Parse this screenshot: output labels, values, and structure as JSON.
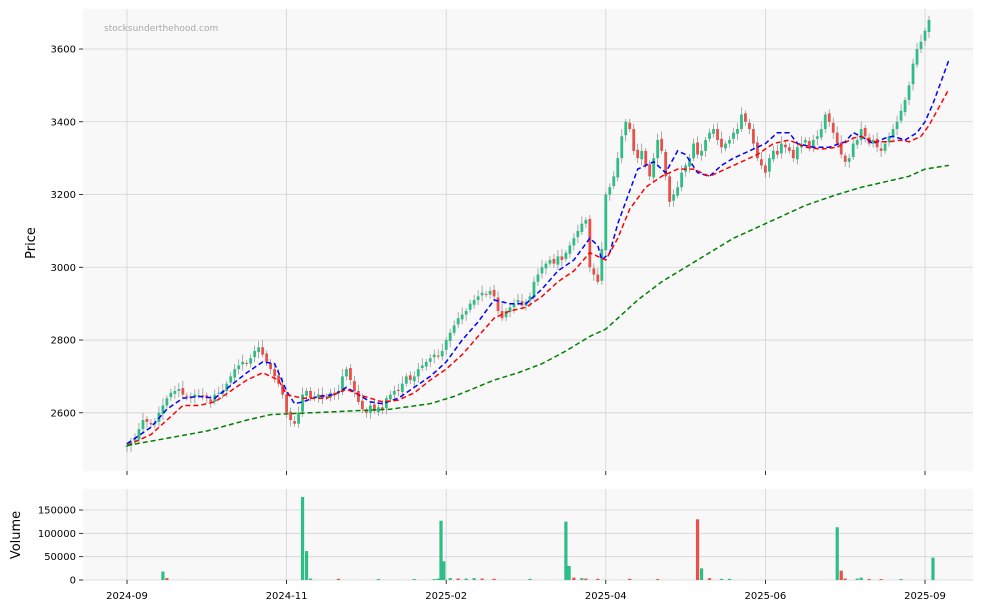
{
  "chart_data": [
    {
      "type": "candlestick",
      "watermark": "stocksunderthehood.com",
      "ylabel": "Price",
      "ylim": [
        2440,
        3710
      ],
      "yticks": [
        2600,
        2800,
        3000,
        3200,
        3400,
        3600
      ],
      "grid": true,
      "x_ticks": [
        {
          "label": "2024-09",
          "index": 0
        },
        {
          "label": "2024-11",
          "index": 40
        },
        {
          "label": "2025-02",
          "index": 80
        },
        {
          "label": "2025-04",
          "index": 120
        },
        {
          "label": "2025-06",
          "index": 160
        },
        {
          "label": "2025-09",
          "index": 200
        }
      ],
      "up_color": "#2ebd85",
      "down_color": "#e8504a",
      "closes": [
        2510,
        2520,
        2530,
        2555,
        2580,
        2575,
        2568,
        2572,
        2600,
        2620,
        2640,
        2655,
        2660,
        2665,
        2650,
        2645,
        2640,
        2650,
        2648,
        2645,
        2640,
        2630,
        2650,
        2655,
        2660,
        2680,
        2700,
        2720,
        2730,
        2740,
        2735,
        2750,
        2770,
        2780,
        2760,
        2740,
        2720,
        2700,
        2680,
        2650,
        2600,
        2580,
        2570,
        2600,
        2650,
        2660,
        2640,
        2645,
        2650,
        2640,
        2645,
        2655,
        2650,
        2660,
        2700,
        2720,
        2690,
        2660,
        2630,
        2610,
        2600,
        2620,
        2605,
        2615,
        2610,
        2640,
        2650,
        2660,
        2660,
        2680,
        2700,
        2690,
        2700,
        2720,
        2730,
        2740,
        2750,
        2760,
        2755,
        2770,
        2800,
        2820,
        2840,
        2860,
        2870,
        2880,
        2900,
        2910,
        2920,
        2930,
        2925,
        2935,
        2920,
        2880,
        2860,
        2880,
        2890,
        2900,
        2910,
        2895,
        2905,
        2920,
        2960,
        2980,
        3000,
        3010,
        3020,
        3010,
        3030,
        3020,
        3040,
        3060,
        3080,
        3100,
        3120,
        3130,
        3000,
        2980,
        2960,
        3050,
        3200,
        3220,
        3250,
        3300,
        3360,
        3400,
        3380,
        3320,
        3300,
        3320,
        3280,
        3250,
        3300,
        3350,
        3320,
        3250,
        3180,
        3200,
        3220,
        3260,
        3280,
        3300,
        3340,
        3310,
        3320,
        3350,
        3370,
        3380,
        3350,
        3330,
        3340,
        3350,
        3370,
        3380,
        3420,
        3400,
        3380,
        3340,
        3300,
        3280,
        3260,
        3300,
        3320,
        3310,
        3340,
        3330,
        3320,
        3300,
        3330,
        3340,
        3350,
        3330,
        3350,
        3360,
        3380,
        3420,
        3400,
        3370,
        3340,
        3310,
        3290,
        3300,
        3340,
        3350,
        3380,
        3360,
        3340,
        3350,
        3330,
        3320,
        3340,
        3360,
        3380,
        3400,
        3430,
        3460,
        3500,
        3560,
        3600,
        3620,
        3650,
        3680
      ],
      "series": [
        {
          "name": "",
          "color": "#0000ff",
          "values": [
            [
              0,
              2515
            ],
            [
              6,
              2560
            ],
            [
              10,
              2610
            ],
            [
              14,
              2640
            ],
            [
              18,
              2645
            ],
            [
              22,
              2640
            ],
            [
              26,
              2675
            ],
            [
              30,
              2710
            ],
            [
              34,
              2740
            ],
            [
              37,
              2735
            ],
            [
              40,
              2660
            ],
            [
              42,
              2625
            ],
            [
              44,
              2630
            ],
            [
              48,
              2645
            ],
            [
              52,
              2650
            ],
            [
              55,
              2670
            ],
            [
              58,
              2650
            ],
            [
              61,
              2630
            ],
            [
              64,
              2625
            ],
            [
              68,
              2640
            ],
            [
              72,
              2670
            ],
            [
              76,
              2700
            ],
            [
              80,
              2740
            ],
            [
              84,
              2800
            ],
            [
              88,
              2850
            ],
            [
              92,
              2910
            ],
            [
              96,
              2900
            ],
            [
              100,
              2900
            ],
            [
              104,
              2940
            ],
            [
              108,
              2990
            ],
            [
              112,
              3020
            ],
            [
              114,
              3050
            ],
            [
              116,
              3080
            ],
            [
              118,
              3060
            ],
            [
              119,
              3020
            ],
            [
              121,
              3040
            ],
            [
              123,
              3120
            ],
            [
              126,
              3210
            ],
            [
              128,
              3270
            ],
            [
              132,
              3290
            ],
            [
              135,
              3260
            ],
            [
              138,
              3320
            ],
            [
              140,
              3310
            ],
            [
              143,
              3260
            ],
            [
              146,
              3250
            ],
            [
              149,
              3280
            ],
            [
              152,
              3300
            ],
            [
              155,
              3315
            ],
            [
              158,
              3330
            ],
            [
              160,
              3340
            ],
            [
              163,
              3370
            ],
            [
              166,
              3370
            ],
            [
              168,
              3340
            ],
            [
              172,
              3330
            ],
            [
              176,
              3330
            ],
            [
              180,
              3345
            ],
            [
              182,
              3370
            ],
            [
              184,
              3360
            ],
            [
              187,
              3340
            ],
            [
              190,
              3355
            ],
            [
              192,
              3360
            ],
            [
              195,
              3350
            ],
            [
              198,
              3370
            ],
            [
              200,
              3400
            ],
            [
              202,
              3450
            ],
            [
              204,
              3510
            ],
            [
              206,
              3570
            ]
          ]
        },
        {
          "name": "",
          "color": "#ff0000",
          "values": [
            [
              0,
              2510
            ],
            [
              6,
              2540
            ],
            [
              10,
              2580
            ],
            [
              14,
              2620
            ],
            [
              18,
              2620
            ],
            [
              22,
              2630
            ],
            [
              26,
              2660
            ],
            [
              30,
              2690
            ],
            [
              34,
              2710
            ],
            [
              38,
              2690
            ],
            [
              40,
              2650
            ],
            [
              44,
              2640
            ],
            [
              50,
              2640
            ],
            [
              55,
              2665
            ],
            [
              58,
              2650
            ],
            [
              64,
              2630
            ],
            [
              68,
              2635
            ],
            [
              72,
              2655
            ],
            [
              76,
              2690
            ],
            [
              80,
              2720
            ],
            [
              84,
              2760
            ],
            [
              88,
              2810
            ],
            [
              92,
              2860
            ],
            [
              96,
              2880
            ],
            [
              100,
              2890
            ],
            [
              104,
              2920
            ],
            [
              108,
              2960
            ],
            [
              112,
              2990
            ],
            [
              116,
              3040
            ],
            [
              118,
              3030
            ],
            [
              120,
              3020
            ],
            [
              123,
              3080
            ],
            [
              126,
              3160
            ],
            [
              130,
              3220
            ],
            [
              134,
              3250
            ],
            [
              138,
              3270
            ],
            [
              142,
              3270
            ],
            [
              146,
              3250
            ],
            [
              150,
              3270
            ],
            [
              154,
              3290
            ],
            [
              158,
              3310
            ],
            [
              162,
              3340
            ],
            [
              166,
              3350
            ],
            [
              170,
              3330
            ],
            [
              174,
              3325
            ],
            [
              178,
              3330
            ],
            [
              182,
              3355
            ],
            [
              184,
              3360
            ],
            [
              187,
              3345
            ],
            [
              191,
              3345
            ],
            [
              194,
              3350
            ],
            [
              196,
              3345
            ],
            [
              199,
              3360
            ],
            [
              201,
              3390
            ],
            [
              203,
              3430
            ],
            [
              205,
              3470
            ],
            [
              206,
              3490
            ]
          ]
        },
        {
          "name": "",
          "color": "#008000",
          "values": [
            [
              0,
              2510
            ],
            [
              10,
              2530
            ],
            [
              20,
              2550
            ],
            [
              30,
              2580
            ],
            [
              36,
              2595
            ],
            [
              46,
              2600
            ],
            [
              56,
              2605
            ],
            [
              66,
              2610
            ],
            [
              76,
              2625
            ],
            [
              82,
              2645
            ],
            [
              92,
              2690
            ],
            [
              98,
              2710
            ],
            [
              104,
              2735
            ],
            [
              110,
              2770
            ],
            [
              116,
              2810
            ],
            [
              120,
              2830
            ],
            [
              124,
              2870
            ],
            [
              128,
              2910
            ],
            [
              134,
              2960
            ],
            [
              140,
              3000
            ],
            [
              146,
              3040
            ],
            [
              152,
              3080
            ],
            [
              158,
              3110
            ],
            [
              164,
              3140
            ],
            [
              170,
              3170
            ],
            [
              178,
              3200
            ],
            [
              184,
              3220
            ],
            [
              192,
              3240
            ],
            [
              196,
              3250
            ],
            [
              200,
              3270
            ],
            [
              206,
              3280
            ]
          ]
        }
      ]
    },
    {
      "type": "bar",
      "ylabel": "Volume",
      "ylim": [
        0,
        195000
      ],
      "yticks": [
        0,
        50000,
        100000,
        150000
      ],
      "grid": true,
      "spikes": [
        {
          "index": 9,
          "value": 18000,
          "color": "#2ebd85"
        },
        {
          "index": 10,
          "value": 4000,
          "color": "#e8504a"
        },
        {
          "index": 44,
          "value": 178000,
          "color": "#2ebd85"
        },
        {
          "index": 45,
          "value": 62000,
          "color": "#2ebd85"
        },
        {
          "index": 46,
          "value": 3000,
          "color": "#2ebd85"
        },
        {
          "index": 53,
          "value": 2500,
          "color": "#e8504a"
        },
        {
          "index": 63,
          "value": 2000,
          "color": "#2ebd85"
        },
        {
          "index": 72,
          "value": 2000,
          "color": "#2ebd85"
        },
        {
          "index": 77,
          "value": 2000,
          "color": "#2ebd85"
        },
        {
          "index": 78,
          "value": 3000,
          "color": "#2ebd85"
        },
        {
          "index": 78.7,
          "value": 127000,
          "color": "#2ebd85"
        },
        {
          "index": 79.4,
          "value": 40000,
          "color": "#2ebd85"
        },
        {
          "index": 81,
          "value": 4000,
          "color": "#2ebd85"
        },
        {
          "index": 83,
          "value": 3000,
          "color": "#e8504a"
        },
        {
          "index": 85,
          "value": 3000,
          "color": "#2ebd85"
        },
        {
          "index": 87,
          "value": 4000,
          "color": "#2ebd85"
        },
        {
          "index": 89,
          "value": 3000,
          "color": "#e8504a"
        },
        {
          "index": 92,
          "value": 2500,
          "color": "#e8504a"
        },
        {
          "index": 101,
          "value": 2500,
          "color": "#2ebd85"
        },
        {
          "index": 110,
          "value": 125000,
          "color": "#2ebd85"
        },
        {
          "index": 110.8,
          "value": 30000,
          "color": "#2ebd85"
        },
        {
          "index": 112,
          "value": 5000,
          "color": "#e8504a"
        },
        {
          "index": 114,
          "value": 4000,
          "color": "#2ebd85"
        },
        {
          "index": 115,
          "value": 3000,
          "color": "#e8504a"
        },
        {
          "index": 118,
          "value": 2500,
          "color": "#e8504a"
        },
        {
          "index": 126,
          "value": 2500,
          "color": "#e8504a"
        },
        {
          "index": 133,
          "value": 2000,
          "color": "#e8504a"
        },
        {
          "index": 143,
          "value": 130000,
          "color": "#e8504a"
        },
        {
          "index": 144,
          "value": 25000,
          "color": "#2ebd85"
        },
        {
          "index": 146,
          "value": 4000,
          "color": "#e8504a"
        },
        {
          "index": 149,
          "value": 2500,
          "color": "#2ebd85"
        },
        {
          "index": 151,
          "value": 2500,
          "color": "#2ebd85"
        },
        {
          "index": 178,
          "value": 113000,
          "color": "#2ebd85"
        },
        {
          "index": 179,
          "value": 20000,
          "color": "#e8504a"
        },
        {
          "index": 180,
          "value": 3000,
          "color": "#e8504a"
        },
        {
          "index": 183,
          "value": 3000,
          "color": "#2ebd85"
        },
        {
          "index": 184,
          "value": 5000,
          "color": "#2ebd85"
        },
        {
          "index": 186,
          "value": 2000,
          "color": "#e8504a"
        },
        {
          "index": 189,
          "value": 2000,
          "color": "#e8504a"
        },
        {
          "index": 194,
          "value": 2000,
          "color": "#2ebd85"
        },
        {
          "index": 202,
          "value": 48000,
          "color": "#2ebd85"
        }
      ]
    }
  ]
}
